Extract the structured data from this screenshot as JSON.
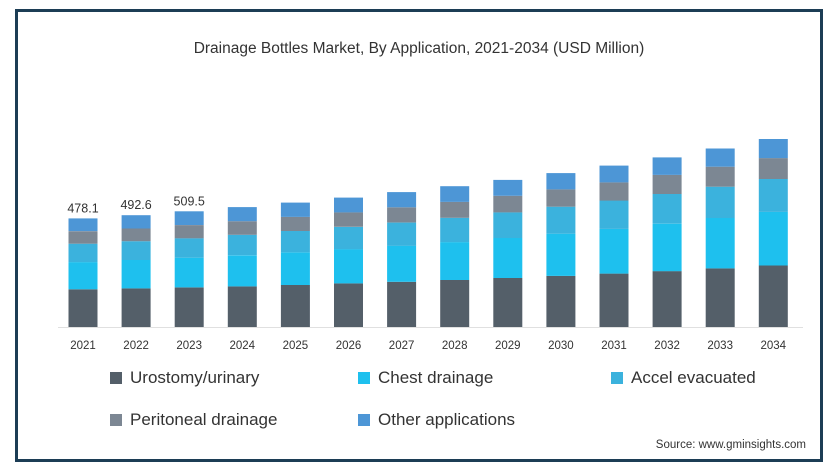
{
  "chart_data": {
    "type": "bar",
    "stacked": true,
    "title": "Drainage Bottles Market, By Application, 2021-2034 (USD Million)",
    "xlabel": "",
    "ylabel": "",
    "categories": [
      "2021",
      "2022",
      "2023",
      "2024",
      "2025",
      "2026",
      "2027",
      "2028",
      "2029",
      "2030",
      "2031",
      "2032",
      "2033",
      "2034"
    ],
    "totals": [
      478.1,
      492.6,
      509.5,
      528,
      548,
      570,
      594,
      620,
      648,
      678,
      711,
      747,
      786,
      828
    ],
    "total_labels": [
      "478.1",
      "492.6",
      "509.5",
      "",
      "",
      "",
      "",
      "",
      "",
      "",
      "",
      "",
      "",
      ""
    ],
    "series": [
      {
        "name": "Urostomy/urinary",
        "color": "#545f69",
        "values": [
          166,
          170,
          174,
          179,
          185,
          192,
          199,
          207,
          216,
          225,
          235,
          246,
          258,
          271
        ]
      },
      {
        "name": "Chest drainage",
        "color": "#1ec0ee",
        "values": [
          120,
          125,
          131,
          137,
          144,
          151,
          159,
          167,
          176,
          186,
          197,
          209,
          222,
          236
        ]
      },
      {
        "name": "Accel evacuated",
        "color": "#3bb2dd",
        "values": [
          81,
          83,
          86,
          90,
          94,
          98,
          102,
          107,
          113,
          119,
          125,
          131,
          138,
          145
        ]
      },
      {
        "name": "Peritoneal drainage",
        "color": "#7c8793",
        "values": [
          55,
          56,
          58,
          60,
          62,
          64,
          67,
          70,
          73,
          76,
          80,
          84,
          88,
          92
        ]
      },
      {
        "name": "Other applications",
        "color": "#4d96d6",
        "values": [
          56.1,
          58.6,
          60.5,
          62,
          63,
          65,
          67,
          69,
          70,
          72,
          74,
          77,
          80,
          84
        ]
      }
    ],
    "ylim": [
      0,
      900
    ],
    "grid": false,
    "legend_position": "bottom"
  },
  "source": "Source: www.gminsights.com"
}
